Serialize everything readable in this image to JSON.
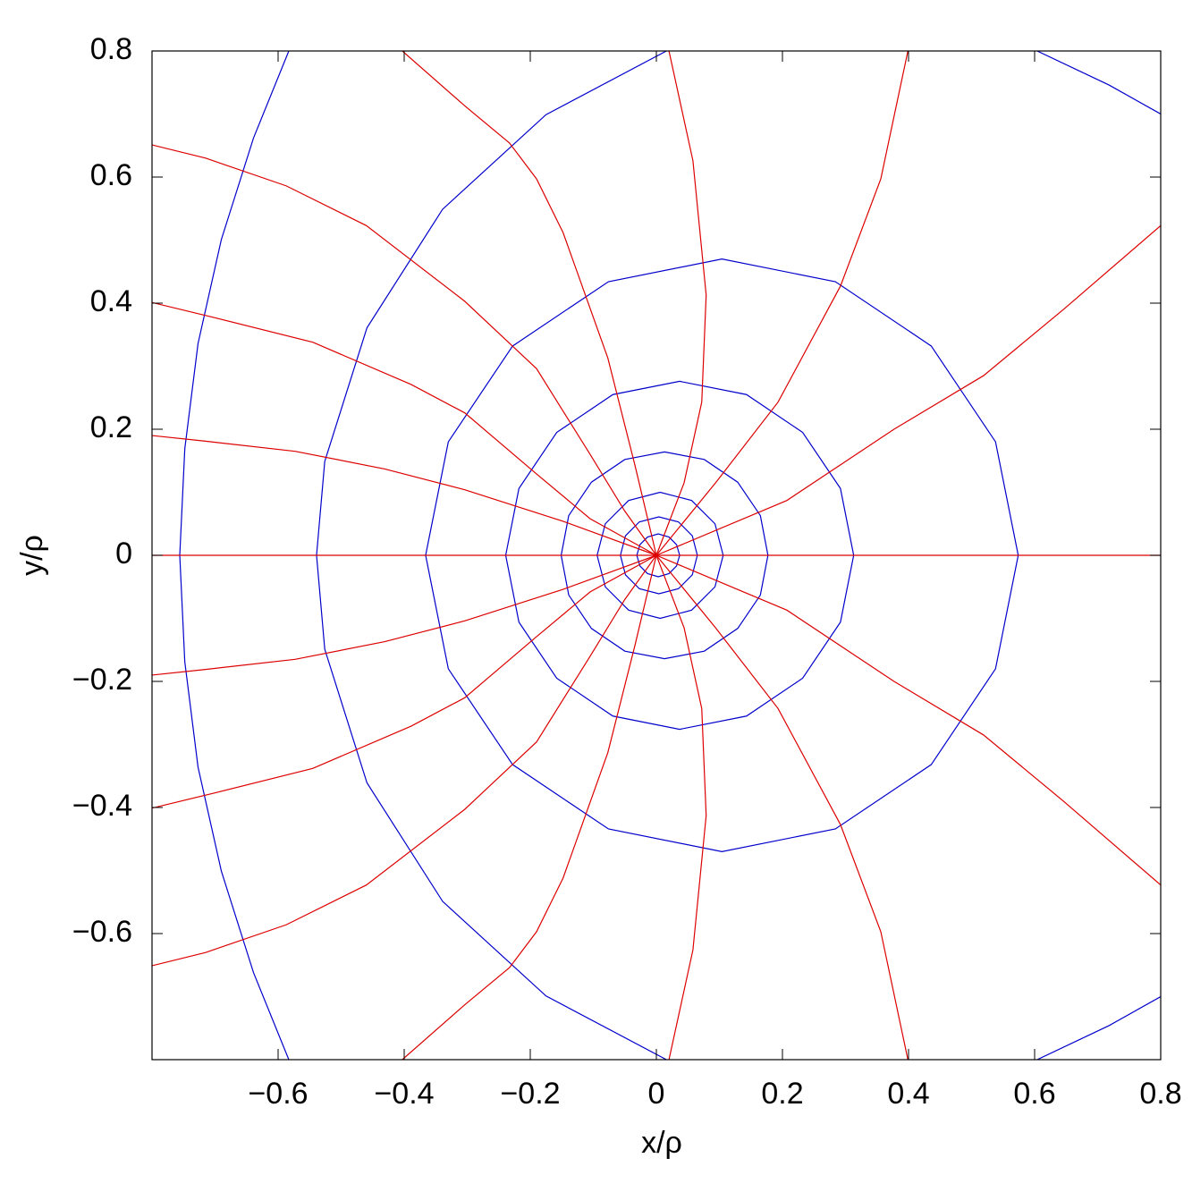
{
  "chart_data": {
    "type": "line",
    "x_label": "x/ρ",
    "y_label": "y/ρ",
    "xlim": [
      -0.8,
      0.8
    ],
    "ylim": [
      -0.8,
      0.8
    ],
    "xticks": [
      {
        "value": -0.6,
        "label": "−0.6"
      },
      {
        "value": -0.4,
        "label": "−0.4"
      },
      {
        "value": -0.2,
        "label": "−0.2"
      },
      0,
      0.2,
      0.4,
      0.6,
      0.8
    ],
    "yticks": [
      {
        "value": -0.6,
        "label": "−0.6"
      },
      {
        "value": -0.4,
        "label": "−0.4"
      },
      {
        "value": -0.2,
        "label": "−0.2"
      },
      0,
      0.2,
      0.4,
      0.6,
      0.8
    ],
    "series": [
      {
        "color": "#0000cc",
        "x": [
          0.037,
          0.032,
          0.02,
          0.003,
          -0.014,
          -0.026,
          -0.031,
          -0.026,
          -0.014,
          0.003,
          0.02,
          0.032,
          0.037
        ],
        "values": [
          0,
          0.017,
          0.029,
          0.034,
          0.029,
          0.017,
          0,
          -0.017,
          -0.029,
          -0.034,
          -0.029,
          -0.017,
          0
        ]
      },
      {
        "color": "#0000cc",
        "x": [
          0.065,
          0.057,
          0.035,
          0.004,
          -0.027,
          -0.049,
          -0.057,
          -0.049,
          -0.027,
          0.004,
          0.035,
          0.057,
          0.065
        ],
        "values": [
          0,
          0.031,
          0.053,
          0.061,
          0.053,
          0.031,
          0,
          -0.031,
          -0.053,
          -0.061,
          -0.053,
          -0.031,
          0
        ]
      },
      {
        "color": "#0000cc",
        "x": [
          0.106,
          0.093,
          0.056,
          0.006,
          -0.044,
          -0.081,
          -0.094,
          -0.081,
          -0.044,
          0.006,
          0.056,
          0.093,
          0.106
        ],
        "values": [
          0,
          0.05,
          0.087,
          0.1,
          0.087,
          0.05,
          0,
          -0.05,
          -0.087,
          -0.1,
          -0.087,
          -0.05,
          0
        ]
      },
      {
        "color": "#0000cc",
        "x": [
          0.177,
          0.165,
          0.129,
          0.076,
          0.013,
          -0.05,
          -0.103,
          -0.139,
          -0.151,
          -0.139,
          -0.103,
          -0.05,
          0.013,
          0.076,
          0.129,
          0.165,
          0.177
        ],
        "values": [
          0,
          0.063,
          0.116,
          0.152,
          0.164,
          0.152,
          0.116,
          0.063,
          0,
          -0.063,
          -0.116,
          -0.152,
          -0.164,
          -0.152,
          -0.116,
          -0.063,
          0
        ]
      },
      {
        "color": "#0000cc",
        "x": [
          0.313,
          0.292,
          0.232,
          0.143,
          0.037,
          -0.069,
          -0.158,
          -0.218,
          -0.239,
          -0.218,
          -0.158,
          -0.069,
          0.037,
          0.143,
          0.232,
          0.292,
          0.313
        ],
        "values": [
          0,
          0.106,
          0.195,
          0.255,
          0.276,
          0.255,
          0.195,
          0.106,
          0,
          -0.106,
          -0.195,
          -0.255,
          -0.276,
          -0.255,
          -0.195,
          -0.106,
          0
        ]
      },
      {
        "color": "#0000cc",
        "x": [
          0.574,
          0.538,
          0.436,
          0.284,
          0.104,
          -0.076,
          -0.228,
          -0.33,
          -0.366,
          -0.33,
          -0.228,
          -0.076,
          0.104,
          0.284,
          0.436,
          0.538,
          0.574
        ],
        "values": [
          0,
          0.18,
          0.332,
          0.434,
          0.47,
          0.434,
          0.332,
          0.18,
          0,
          -0.18,
          -0.332,
          -0.434,
          -0.47,
          -0.434,
          -0.332,
          -0.18,
          0
        ]
      },
      {
        "color": "#0000cc",
        "x": [
          0.016,
          -0.175,
          -0.339,
          -0.459,
          -0.526,
          -0.539,
          -0.526,
          -0.459,
          -0.339,
          -0.175,
          0.016
        ],
        "values": [
          0.8,
          0.699,
          0.549,
          0.361,
          0.149,
          0,
          -0.149,
          -0.361,
          -0.549,
          -0.699,
          -0.8
        ]
      },
      {
        "color": "#0000cc",
        "x": [
          -0.583,
          -0.639,
          -0.69,
          -0.727,
          -0.748,
          -0.756,
          -0.748,
          -0.727,
          -0.69,
          -0.639,
          -0.583
        ],
        "values": [
          0.8,
          0.662,
          0.501,
          0.336,
          0.169,
          0,
          -0.169,
          -0.336,
          -0.501,
          -0.662,
          -0.8
        ]
      },
      {
        "color": "#0000cc",
        "x": [
          0.604,
          0.718,
          0.8
        ],
        "values": [
          0.8,
          0.746,
          0.7
        ]
      },
      {
        "color": "#0000cc",
        "x": [
          0.604,
          0.718,
          0.8
        ],
        "values": [
          -0.8,
          -0.746,
          -0.7
        ]
      },
      {
        "color": "#dd0000",
        "x": [
          -0.8,
          0.8
        ],
        "values": [
          0,
          0
        ]
      },
      {
        "color": "#dd0000",
        "x": [
          -0.8,
          -0.715,
          -0.573,
          -0.431,
          -0.304,
          -0.148,
          0
        ],
        "values": [
          0.19,
          0.181,
          0.165,
          0.137,
          0.104,
          0.054,
          0
        ]
      },
      {
        "color": "#dd0000",
        "x": [
          -0.8,
          -0.701,
          -0.545,
          -0.389,
          -0.304,
          -0.19,
          -0.105,
          0
        ],
        "values": [
          0.401,
          0.377,
          0.338,
          0.271,
          0.226,
          0.129,
          0.058,
          0
        ]
      },
      {
        "color": "#dd0000",
        "x": [
          -0.8,
          -0.715,
          -0.587,
          -0.46,
          -0.304,
          -0.19,
          -0.105,
          -0.05,
          0
        ],
        "values": [
          0.651,
          0.63,
          0.586,
          0.523,
          0.403,
          0.296,
          0.16,
          0.07,
          0
        ]
      },
      {
        "color": "#dd0000",
        "x": [
          -0.403,
          -0.304,
          -0.233,
          -0.19,
          -0.148,
          -0.077,
          -0.034,
          0
        ],
        "values": [
          0.8,
          0.713,
          0.654,
          0.597,
          0.512,
          0.313,
          0.143,
          0
        ]
      },
      {
        "color": "#dd0000",
        "x": [
          0.02,
          0.058,
          0.079,
          0.072,
          0.044,
          0
        ],
        "values": [
          0.8,
          0.626,
          0.413,
          0.243,
          0.115,
          0
        ]
      },
      {
        "color": "#dd0000",
        "x": [
          0.399,
          0.356,
          0.292,
          0.193,
          0.094,
          0
        ],
        "values": [
          0.8,
          0.597,
          0.427,
          0.243,
          0.115,
          0
        ]
      },
      {
        "color": "#dd0000",
        "x": [
          0.8,
          0.647,
          0.519,
          0.377,
          0.207,
          0
        ],
        "values": [
          0.523,
          0.391,
          0.285,
          0.2,
          0.087,
          0
        ]
      },
      {
        "color": "#dd0000",
        "x": [
          -0.8,
          -0.715,
          -0.573,
          -0.431,
          -0.304,
          -0.148,
          0
        ],
        "values": [
          -0.19,
          -0.181,
          -0.165,
          -0.137,
          -0.104,
          -0.054,
          0
        ]
      },
      {
        "color": "#dd0000",
        "x": [
          -0.8,
          -0.701,
          -0.545,
          -0.389,
          -0.304,
          -0.19,
          -0.105,
          0
        ],
        "values": [
          -0.401,
          -0.377,
          -0.338,
          -0.271,
          -0.226,
          -0.129,
          -0.058,
          0
        ]
      },
      {
        "color": "#dd0000",
        "x": [
          -0.8,
          -0.715,
          -0.587,
          -0.46,
          -0.304,
          -0.19,
          -0.105,
          -0.05,
          0
        ],
        "values": [
          -0.651,
          -0.63,
          -0.586,
          -0.523,
          -0.403,
          -0.296,
          -0.16,
          -0.07,
          0
        ]
      },
      {
        "color": "#dd0000",
        "x": [
          -0.403,
          -0.304,
          -0.233,
          -0.19,
          -0.148,
          -0.077,
          -0.034,
          0
        ],
        "values": [
          -0.8,
          -0.713,
          -0.654,
          -0.597,
          -0.512,
          -0.313,
          -0.143,
          0
        ]
      },
      {
        "color": "#dd0000",
        "x": [
          0.02,
          0.058,
          0.079,
          0.072,
          0.044,
          0
        ],
        "values": [
          -0.8,
          -0.626,
          -0.413,
          -0.243,
          -0.115,
          0
        ]
      },
      {
        "color": "#dd0000",
        "x": [
          0.399,
          0.356,
          0.292,
          0.193,
          0.094,
          0
        ],
        "values": [
          -0.8,
          -0.597,
          -0.427,
          -0.243,
          -0.115,
          0
        ]
      },
      {
        "color": "#dd0000",
        "x": [
          0.8,
          0.647,
          0.519,
          0.377,
          0.207,
          0
        ],
        "values": [
          -0.523,
          -0.391,
          -0.285,
          -0.2,
          -0.087,
          0
        ]
      }
    ]
  }
}
